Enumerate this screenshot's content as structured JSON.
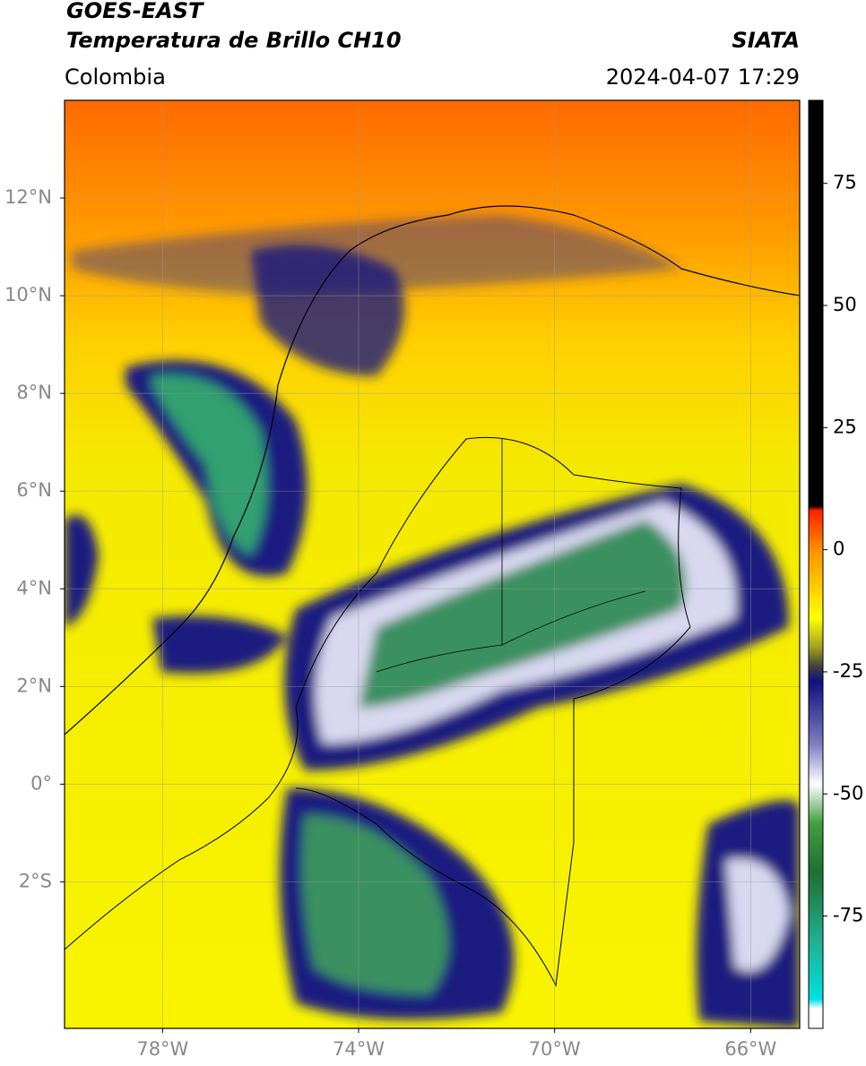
{
  "header": {
    "satellite": "GOES-EAST",
    "product": "Temperatura de Brillo CH10",
    "region": "Colombia",
    "source": "SIATA",
    "datetime": "2024-04-07 17:29"
  },
  "map": {
    "lonlim": [
      -80,
      -65
    ],
    "latlim": [
      -5,
      14
    ],
    "lon_ticks": [
      {
        "value": -78,
        "label": "78°W"
      },
      {
        "value": -74,
        "label": "74°W"
      },
      {
        "value": -70,
        "label": "70°W"
      },
      {
        "value": -66,
        "label": "66°W"
      }
    ],
    "lat_ticks": [
      {
        "value": 12,
        "label": "12°N"
      },
      {
        "value": 10,
        "label": "10°N"
      },
      {
        "value": 8,
        "label": "8°N"
      },
      {
        "value": 6,
        "label": "6°N"
      },
      {
        "value": 4,
        "label": "4°N"
      },
      {
        "value": 2,
        "label": "2°N"
      },
      {
        "value": 0,
        "label": "0°"
      },
      {
        "value": -2,
        "label": "2°S"
      }
    ]
  },
  "colorbar": {
    "lim": [
      -98,
      92
    ],
    "ticks": [
      75,
      50,
      25,
      0,
      -25,
      -50,
      -75
    ],
    "stops": [
      {
        "value": 92,
        "color": "#000000"
      },
      {
        "value": 9,
        "color": "#000000"
      },
      {
        "value": 8,
        "color": "#ff2000"
      },
      {
        "value": 0,
        "color": "#ff9000"
      },
      {
        "value": -14,
        "color": "#ffff00"
      },
      {
        "value": -20,
        "color": "#a0a020"
      },
      {
        "value": -24,
        "color": "#404040"
      },
      {
        "value": -27,
        "color": "#101080"
      },
      {
        "value": -40,
        "color": "#8080c0"
      },
      {
        "value": -48,
        "color": "#ffffff"
      },
      {
        "value": -56,
        "color": "#40a040"
      },
      {
        "value": -66,
        "color": "#207030"
      },
      {
        "value": -80,
        "color": "#20b090"
      },
      {
        "value": -92,
        "color": "#00e0e0"
      },
      {
        "value": -94,
        "color": "#ffffff"
      },
      {
        "value": -98,
        "color": "#ffffff"
      }
    ]
  }
}
